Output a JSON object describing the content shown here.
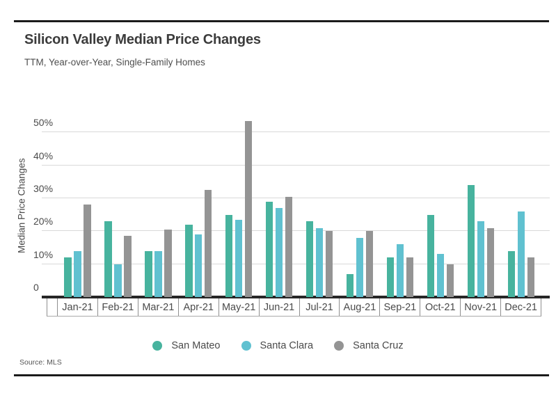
{
  "header": {
    "title": "Silicon Valley Median Price Changes",
    "subtitle": "TTM, Year-over-Year, Single-Family Homes"
  },
  "footer": {
    "source": "Source:  MLS"
  },
  "chart_data": {
    "type": "bar",
    "title": "Silicon Valley Median Price Changes",
    "subtitle": "TTM, Year-over-Year, Single-Family Homes",
    "categories": [
      "Jan-21",
      "Feb-21",
      "Mar-21",
      "Apr-21",
      "May-21",
      "Jun-21",
      "Jul-21",
      "Aug-21",
      "Sep-21",
      "Oct-21",
      "Nov-21",
      "Dec-21"
    ],
    "series": [
      {
        "name": "San Mateo",
        "color": "#47b39e",
        "values": [
          12,
          23,
          14,
          22,
          25,
          29,
          23,
          7,
          12,
          25,
          34,
          14
        ]
      },
      {
        "name": "Santa Clara",
        "color": "#60c1d0",
        "values": [
          14,
          10,
          14,
          19,
          23.5,
          27,
          21,
          18,
          16,
          13,
          23,
          26
        ]
      },
      {
        "name": "Santa Cruz",
        "color": "#949494",
        "values": [
          28,
          18.5,
          20.5,
          32.5,
          53.5,
          30.5,
          20,
          20,
          12,
          10,
          21,
          12
        ]
      }
    ],
    "ylabel": "Median Price Changes",
    "yticks": [
      {
        "label": "0",
        "value": 0
      },
      {
        "label": "10%",
        "value": 10
      },
      {
        "label": "20%",
        "value": 20
      },
      {
        "label": "30%",
        "value": 30
      },
      {
        "label": "40%",
        "value": 40
      },
      {
        "label": "50%",
        "value": 50
      }
    ],
    "ylim": [
      0,
      55
    ],
    "grid": "horizontal",
    "legend_position": "bottom",
    "unit": "percent"
  },
  "colors": {
    "san_mateo": "#47b39e",
    "santa_clara": "#60c1d0",
    "santa_cruz": "#949494",
    "gridline": "#d9d9d9",
    "axis_line": "#262626",
    "rule": "#1b1b1b"
  }
}
